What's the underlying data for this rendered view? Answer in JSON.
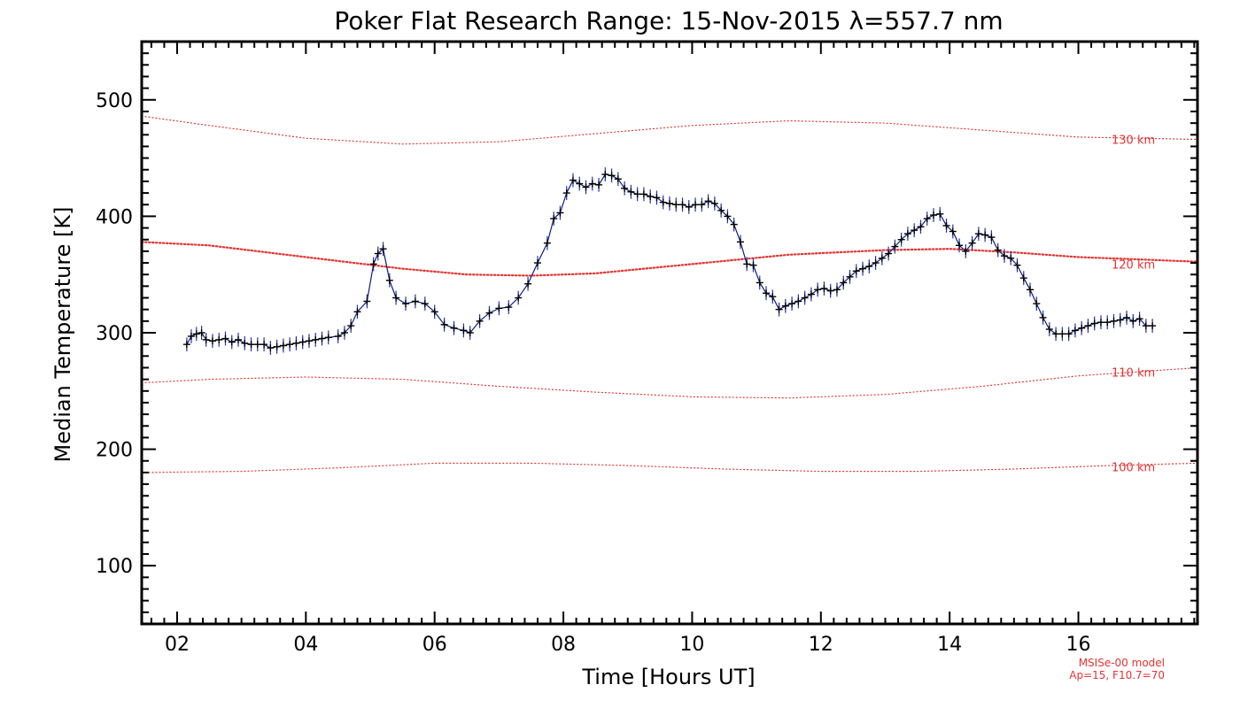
{
  "chart_data": {
    "type": "line",
    "title": "Poker Flat Research Range: 15-Nov-2015 λ=557.7 nm",
    "xlabel": "Time [Hours UT]",
    "ylabel": "Median Temperature [K]",
    "xlim": [
      1.45,
      17.85
    ],
    "ylim": [
      50,
      550
    ],
    "x_ticks": [
      2,
      4,
      6,
      8,
      10,
      12,
      14,
      16
    ],
    "x_tick_labels": [
      "02",
      "04",
      "06",
      "08",
      "10",
      "12",
      "14",
      "16"
    ],
    "y_ticks": [
      100,
      200,
      300,
      400,
      500
    ],
    "y_tick_labels": [
      "100",
      "200",
      "300",
      "400",
      "500"
    ],
    "grid": false,
    "series": [
      {
        "type": "line-with-errorbars",
        "color": "#0b1f7a",
        "marker_color": "#000000",
        "error": 6,
        "points": [
          [
            2.15,
            290
          ],
          [
            2.22,
            297
          ],
          [
            2.3,
            299
          ],
          [
            2.38,
            300
          ],
          [
            2.45,
            294
          ],
          [
            2.55,
            293
          ],
          [
            2.65,
            294
          ],
          [
            2.75,
            295
          ],
          [
            2.85,
            292
          ],
          [
            2.95,
            294
          ],
          [
            3.05,
            291
          ],
          [
            3.15,
            290
          ],
          [
            3.25,
            290
          ],
          [
            3.35,
            290
          ],
          [
            3.45,
            287
          ],
          [
            3.55,
            288
          ],
          [
            3.65,
            289
          ],
          [
            3.75,
            290
          ],
          [
            3.85,
            291
          ],
          [
            3.95,
            292
          ],
          [
            4.05,
            293
          ],
          [
            4.15,
            294
          ],
          [
            4.25,
            295
          ],
          [
            4.35,
            296
          ],
          [
            4.5,
            297
          ],
          [
            4.6,
            300
          ],
          [
            4.7,
            306
          ],
          [
            4.8,
            318
          ],
          [
            4.95,
            327
          ],
          [
            5.05,
            359
          ],
          [
            5.12,
            368
          ],
          [
            5.2,
            372
          ],
          [
            5.3,
            345
          ],
          [
            5.4,
            330
          ],
          [
            5.55,
            325
          ],
          [
            5.7,
            327
          ],
          [
            5.85,
            325
          ],
          [
            6.0,
            318
          ],
          [
            6.15,
            307
          ],
          [
            6.3,
            304
          ],
          [
            6.45,
            302
          ],
          [
            6.55,
            300
          ],
          [
            6.7,
            310
          ],
          [
            6.85,
            317
          ],
          [
            7.0,
            321
          ],
          [
            7.15,
            322
          ],
          [
            7.3,
            330
          ],
          [
            7.45,
            342
          ],
          [
            7.6,
            360
          ],
          [
            7.75,
            377
          ],
          [
            7.85,
            398
          ],
          [
            7.95,
            403
          ],
          [
            8.05,
            420
          ],
          [
            8.15,
            431
          ],
          [
            8.25,
            428
          ],
          [
            8.35,
            425
          ],
          [
            8.45,
            428
          ],
          [
            8.55,
            427
          ],
          [
            8.65,
            436
          ],
          [
            8.75,
            435
          ],
          [
            8.85,
            432
          ],
          [
            8.95,
            424
          ],
          [
            9.05,
            421
          ],
          [
            9.15,
            419
          ],
          [
            9.25,
            419
          ],
          [
            9.35,
            417
          ],
          [
            9.45,
            416
          ],
          [
            9.55,
            412
          ],
          [
            9.65,
            411
          ],
          [
            9.75,
            410
          ],
          [
            9.85,
            410
          ],
          [
            9.95,
            408
          ],
          [
            10.05,
            410
          ],
          [
            10.15,
            410
          ],
          [
            10.25,
            413
          ],
          [
            10.35,
            411
          ],
          [
            10.45,
            405
          ],
          [
            10.55,
            400
          ],
          [
            10.65,
            393
          ],
          [
            10.75,
            378
          ],
          [
            10.85,
            359
          ],
          [
            10.95,
            358
          ],
          [
            11.05,
            343
          ],
          [
            11.15,
            334
          ],
          [
            11.25,
            331
          ],
          [
            11.35,
            320
          ],
          [
            11.45,
            323
          ],
          [
            11.55,
            325
          ],
          [
            11.65,
            327
          ],
          [
            11.75,
            330
          ],
          [
            11.85,
            333
          ],
          [
            11.95,
            337
          ],
          [
            12.05,
            338
          ],
          [
            12.15,
            336
          ],
          [
            12.25,
            337
          ],
          [
            12.35,
            343
          ],
          [
            12.45,
            348
          ],
          [
            12.55,
            353
          ],
          [
            12.65,
            355
          ],
          [
            12.75,
            357
          ],
          [
            12.85,
            360
          ],
          [
            12.95,
            364
          ],
          [
            13.05,
            368
          ],
          [
            13.15,
            374
          ],
          [
            13.25,
            380
          ],
          [
            13.35,
            385
          ],
          [
            13.45,
            388
          ],
          [
            13.55,
            391
          ],
          [
            13.65,
            398
          ],
          [
            13.75,
            401
          ],
          [
            13.85,
            402
          ],
          [
            13.95,
            392
          ],
          [
            14.05,
            387
          ],
          [
            14.15,
            375
          ],
          [
            14.25,
            370
          ],
          [
            14.35,
            377
          ],
          [
            14.45,
            385
          ],
          [
            14.55,
            384
          ],
          [
            14.65,
            382
          ],
          [
            14.75,
            371
          ],
          [
            14.85,
            366
          ],
          [
            14.95,
            364
          ],
          [
            15.05,
            358
          ],
          [
            15.15,
            347
          ],
          [
            15.25,
            337
          ],
          [
            15.35,
            325
          ],
          [
            15.45,
            313
          ],
          [
            15.55,
            303
          ],
          [
            15.65,
            299
          ],
          [
            15.75,
            299
          ],
          [
            15.85,
            299
          ],
          [
            15.95,
            302
          ],
          [
            16.05,
            304
          ],
          [
            16.15,
            306
          ],
          [
            16.25,
            308
          ],
          [
            16.35,
            309
          ],
          [
            16.45,
            309
          ],
          [
            16.55,
            310
          ],
          [
            16.65,
            311
          ],
          [
            16.75,
            313
          ],
          [
            16.85,
            310
          ],
          [
            16.95,
            312
          ],
          [
            17.05,
            306
          ],
          [
            17.15,
            306
          ]
        ]
      },
      {
        "name": "130 km",
        "type": "model-dotted",
        "color": "#e53333",
        "points": [
          [
            1.45,
            486
          ],
          [
            2.5,
            478
          ],
          [
            4.0,
            467
          ],
          [
            5.5,
            462
          ],
          [
            7.0,
            464
          ],
          [
            8.5,
            471
          ],
          [
            10.0,
            478
          ],
          [
            11.5,
            482
          ],
          [
            13.0,
            480
          ],
          [
            14.5,
            474
          ],
          [
            16.0,
            468
          ],
          [
            17.85,
            466
          ]
        ]
      },
      {
        "name": "120 km",
        "type": "model-dotted",
        "color": "#e53333",
        "points": [
          [
            1.45,
            378
          ],
          [
            2.5,
            375
          ],
          [
            4.0,
            365
          ],
          [
            5.5,
            355
          ],
          [
            6.5,
            350
          ],
          [
            7.5,
            349
          ],
          [
            8.5,
            351
          ],
          [
            10.0,
            359
          ],
          [
            11.5,
            367
          ],
          [
            13.0,
            371
          ],
          [
            14.0,
            372
          ],
          [
            15.0,
            369
          ],
          [
            16.0,
            365
          ],
          [
            17.85,
            361
          ]
        ]
      },
      {
        "name": "110 km",
        "type": "model-dotted",
        "color": "#e53333",
        "points": [
          [
            1.45,
            257
          ],
          [
            2.5,
            260
          ],
          [
            4.0,
            262
          ],
          [
            5.5,
            260
          ],
          [
            7.0,
            254
          ],
          [
            8.5,
            249
          ],
          [
            10.0,
            245
          ],
          [
            11.5,
            244
          ],
          [
            13.0,
            247
          ],
          [
            14.5,
            254
          ],
          [
            16.0,
            263
          ],
          [
            17.85,
            270
          ]
        ]
      },
      {
        "name": "100 km",
        "type": "model-dotted",
        "color": "#e53333",
        "points": [
          [
            1.45,
            180
          ],
          [
            3.0,
            181
          ],
          [
            4.5,
            184
          ],
          [
            6.0,
            188
          ],
          [
            7.5,
            188
          ],
          [
            9.0,
            186
          ],
          [
            10.5,
            183
          ],
          [
            12.0,
            181
          ],
          [
            13.5,
            181
          ],
          [
            15.0,
            183
          ],
          [
            16.5,
            186
          ],
          [
            17.85,
            188
          ]
        ]
      }
    ],
    "model_labels": [
      {
        "text": "130 km",
        "y": 466
      },
      {
        "text": "120 km",
        "y": 359
      },
      {
        "text": "110 km",
        "y": 266
      },
      {
        "text": "100 km",
        "y": 185
      }
    ],
    "footnote": [
      "MSISe-00 model",
      "Ap=15, F10.7=70"
    ]
  }
}
